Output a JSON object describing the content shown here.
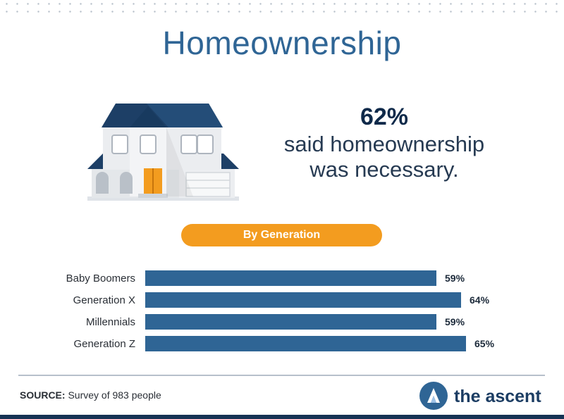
{
  "title": "Homeownership",
  "headline": {
    "value": "62%",
    "line1": "said homeownership",
    "line2": "was necessary."
  },
  "section_label": "By Generation",
  "chart_data": {
    "type": "bar",
    "orientation": "horizontal",
    "categories": [
      "Baby Boomers",
      "Generation X",
      "Millennials",
      "Generation Z"
    ],
    "values": [
      59,
      64,
      59,
      65
    ],
    "value_labels": [
      "59%",
      "64%",
      "59%",
      "65%"
    ],
    "bar_color": "#2f6595"
  },
  "source": {
    "label": "SOURCE:",
    "text": "Survey of 983 people"
  },
  "brand": {
    "name": "the ascent"
  },
  "colors": {
    "accent": "#f39c1f",
    "primary": "#2f6595",
    "navy": "#163354"
  },
  "icons": [
    "house-icon",
    "ascent-logo-icon"
  ]
}
